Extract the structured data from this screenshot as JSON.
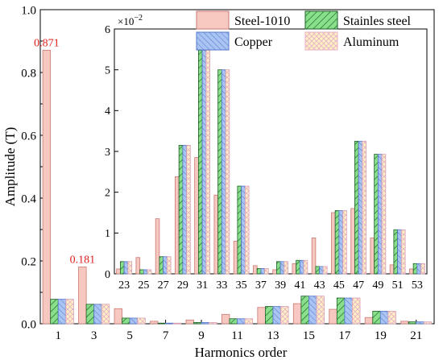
{
  "colors": {
    "steel": "#f6c8c0",
    "steel_stroke": "#c97a73",
    "stainless": "#88e08a",
    "stainless_hatch": "#1f5e28",
    "copper": "#a9c4f2",
    "copper_hatch": "#5577cc",
    "aluminum": "#fff1c4",
    "aluminum_hatch": "#e8b0c8",
    "label_red": "#e0201b"
  },
  "legend": {
    "steel": "Steel-1010",
    "stainless": "Stainles steel",
    "copper": "Copper",
    "aluminum": "Aluminum"
  },
  "chart_data": [
    {
      "type": "bar",
      "xlabel": "Harmonics order",
      "ylabel": "Amplitude (T)",
      "ylim": [
        0,
        1.0
      ],
      "yticks": [
        "0.0",
        "0.2",
        "0.4",
        "0.6",
        "0.8",
        "1.0"
      ],
      "categories": [
        "1",
        "3",
        "5",
        "7",
        "9",
        "11",
        "13",
        "15",
        "17",
        "19",
        "21"
      ],
      "series": [
        {
          "name": "Steel-1010",
          "values": [
            0.871,
            0.181,
            0.048,
            0.008,
            0.012,
            0.03,
            0.052,
            0.064,
            0.046,
            0.02,
            0.008
          ]
        },
        {
          "name": "Stainles steel",
          "values": [
            0.078,
            0.062,
            0.018,
            0.002,
            0.004,
            0.016,
            0.055,
            0.088,
            0.082,
            0.04,
            0.006
          ]
        },
        {
          "name": "Copper",
          "values": [
            0.078,
            0.062,
            0.018,
            0.002,
            0.004,
            0.016,
            0.055,
            0.088,
            0.082,
            0.04,
            0.006
          ]
        },
        {
          "name": "Aluminum",
          "values": [
            0.078,
            0.062,
            0.018,
            0.002,
            0.004,
            0.016,
            0.055,
            0.088,
            0.082,
            0.04,
            0.006
          ]
        }
      ],
      "annotations": [
        "0.871",
        "0.181"
      ]
    },
    {
      "type": "bar",
      "scale_label": "×10",
      "scale_exp": "−2",
      "ylim": [
        0,
        6
      ],
      "yticks": [
        "0",
        "1",
        "2",
        "3",
        "4",
        "5",
        "6"
      ],
      "categories": [
        "23",
        "25",
        "27",
        "29",
        "31",
        "33",
        "35",
        "37",
        "39",
        "41",
        "43",
        "45",
        "47",
        "49",
        "51",
        "53"
      ],
      "series": [
        {
          "name": "Steel-1010",
          "values": [
            0.12,
            0.4,
            1.35,
            2.38,
            2.85,
            1.93,
            0.8,
            0.2,
            0.1,
            0.25,
            0.88,
            1.5,
            1.6,
            0.88,
            0.22,
            0.12
          ]
        },
        {
          "name": "Stainles steel",
          "values": [
            0.3,
            0.1,
            0.42,
            3.15,
            5.48,
            5.0,
            2.15,
            0.13,
            0.3,
            0.33,
            0.18,
            1.55,
            3.25,
            2.93,
            1.08,
            0.25
          ]
        },
        {
          "name": "Copper",
          "values": [
            0.3,
            0.1,
            0.42,
            3.15,
            5.48,
            5.0,
            2.15,
            0.13,
            0.3,
            0.33,
            0.18,
            1.55,
            3.25,
            2.93,
            1.08,
            0.25
          ]
        },
        {
          "name": "Aluminum",
          "values": [
            0.3,
            0.1,
            0.42,
            3.15,
            5.48,
            5.0,
            2.15,
            0.13,
            0.3,
            0.33,
            0.18,
            1.55,
            3.25,
            2.93,
            1.08,
            0.25
          ]
        }
      ]
    }
  ]
}
